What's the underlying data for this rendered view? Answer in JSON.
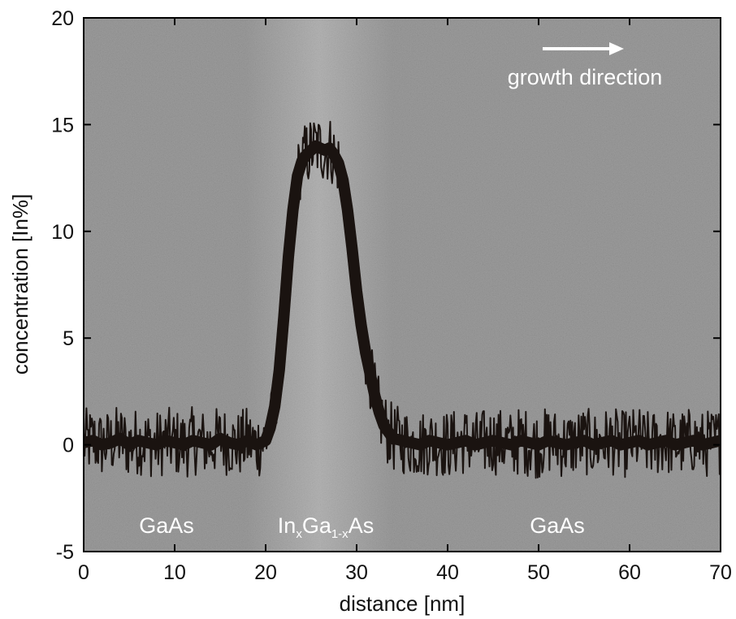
{
  "chart_data": {
    "type": "line",
    "xlabel": "distance [nm]",
    "ylabel": "concentration [In%]",
    "xlim": [
      0,
      70
    ],
    "ylim": [
      -5,
      20
    ],
    "xticks": [
      0,
      10,
      20,
      30,
      40,
      50,
      60,
      70
    ],
    "yticks": [
      -5,
      0,
      5,
      10,
      15,
      20
    ],
    "grid": false,
    "background": "TEM micrograph (grey, brighter In-rich band centred near 26 nm)",
    "colors": {
      "line": "#1a1310",
      "background": "#8a8a8a",
      "band": "#b4b4b4",
      "annotation": "#ffffff"
    },
    "annotations": {
      "growth_direction": "growth direction",
      "region_left": "GaAs",
      "region_middle_parts": [
        "In",
        "x",
        "Ga",
        "1-x",
        "As"
      ],
      "region_right": "GaAs"
    },
    "series": [
      {
        "x": [
          0,
          1,
          2,
          3,
          4,
          5,
          6,
          7,
          8,
          9,
          10,
          11,
          12,
          13,
          14,
          15,
          16,
          17,
          18,
          19,
          20,
          20.5,
          21,
          21.5,
          22,
          22.5,
          23,
          23.5,
          24,
          24.5,
          25,
          25.5,
          26,
          26.5,
          27,
          27.5,
          28,
          28.5,
          29,
          29.5,
          30,
          30.5,
          31,
          31.5,
          32,
          32.5,
          33,
          34,
          35,
          36,
          37,
          38,
          39,
          40,
          41,
          42,
          43,
          44,
          45,
          46,
          47,
          48,
          49,
          50,
          51,
          52,
          53,
          54,
          55,
          56,
          57,
          58,
          59,
          60,
          61,
          62,
          63,
          64,
          65,
          66,
          67,
          68,
          69,
          70
        ],
        "y": [
          0.1,
          0.2,
          0.0,
          0.1,
          0.3,
          0.0,
          0.2,
          0.1,
          0.0,
          0.2,
          0.1,
          0.0,
          0.2,
          0.1,
          0.0,
          0.3,
          0.1,
          0.0,
          0.2,
          0.0,
          0.2,
          0.8,
          1.8,
          3.5,
          6.0,
          8.8,
          11.0,
          12.6,
          13.3,
          13.6,
          13.8,
          14.0,
          13.9,
          13.8,
          13.9,
          13.6,
          13.2,
          12.4,
          11.0,
          9.2,
          7.2,
          5.6,
          4.3,
          3.3,
          2.3,
          1.5,
          0.9,
          0.3,
          0.2,
          0.1,
          0.0,
          0.2,
          0.1,
          0.0,
          0.1,
          0.2,
          0.0,
          0.1,
          0.2,
          0.1,
          0.0,
          0.2,
          0.1,
          0.0,
          0.2,
          0.1,
          0.0,
          0.1,
          0.2,
          0.0,
          0.1,
          0.2,
          0.0,
          0.1,
          0.2,
          0.0,
          0.1,
          0.2,
          0.0,
          0.1,
          0.2,
          0.0,
          0.1,
          0.2
        ]
      }
    ]
  }
}
